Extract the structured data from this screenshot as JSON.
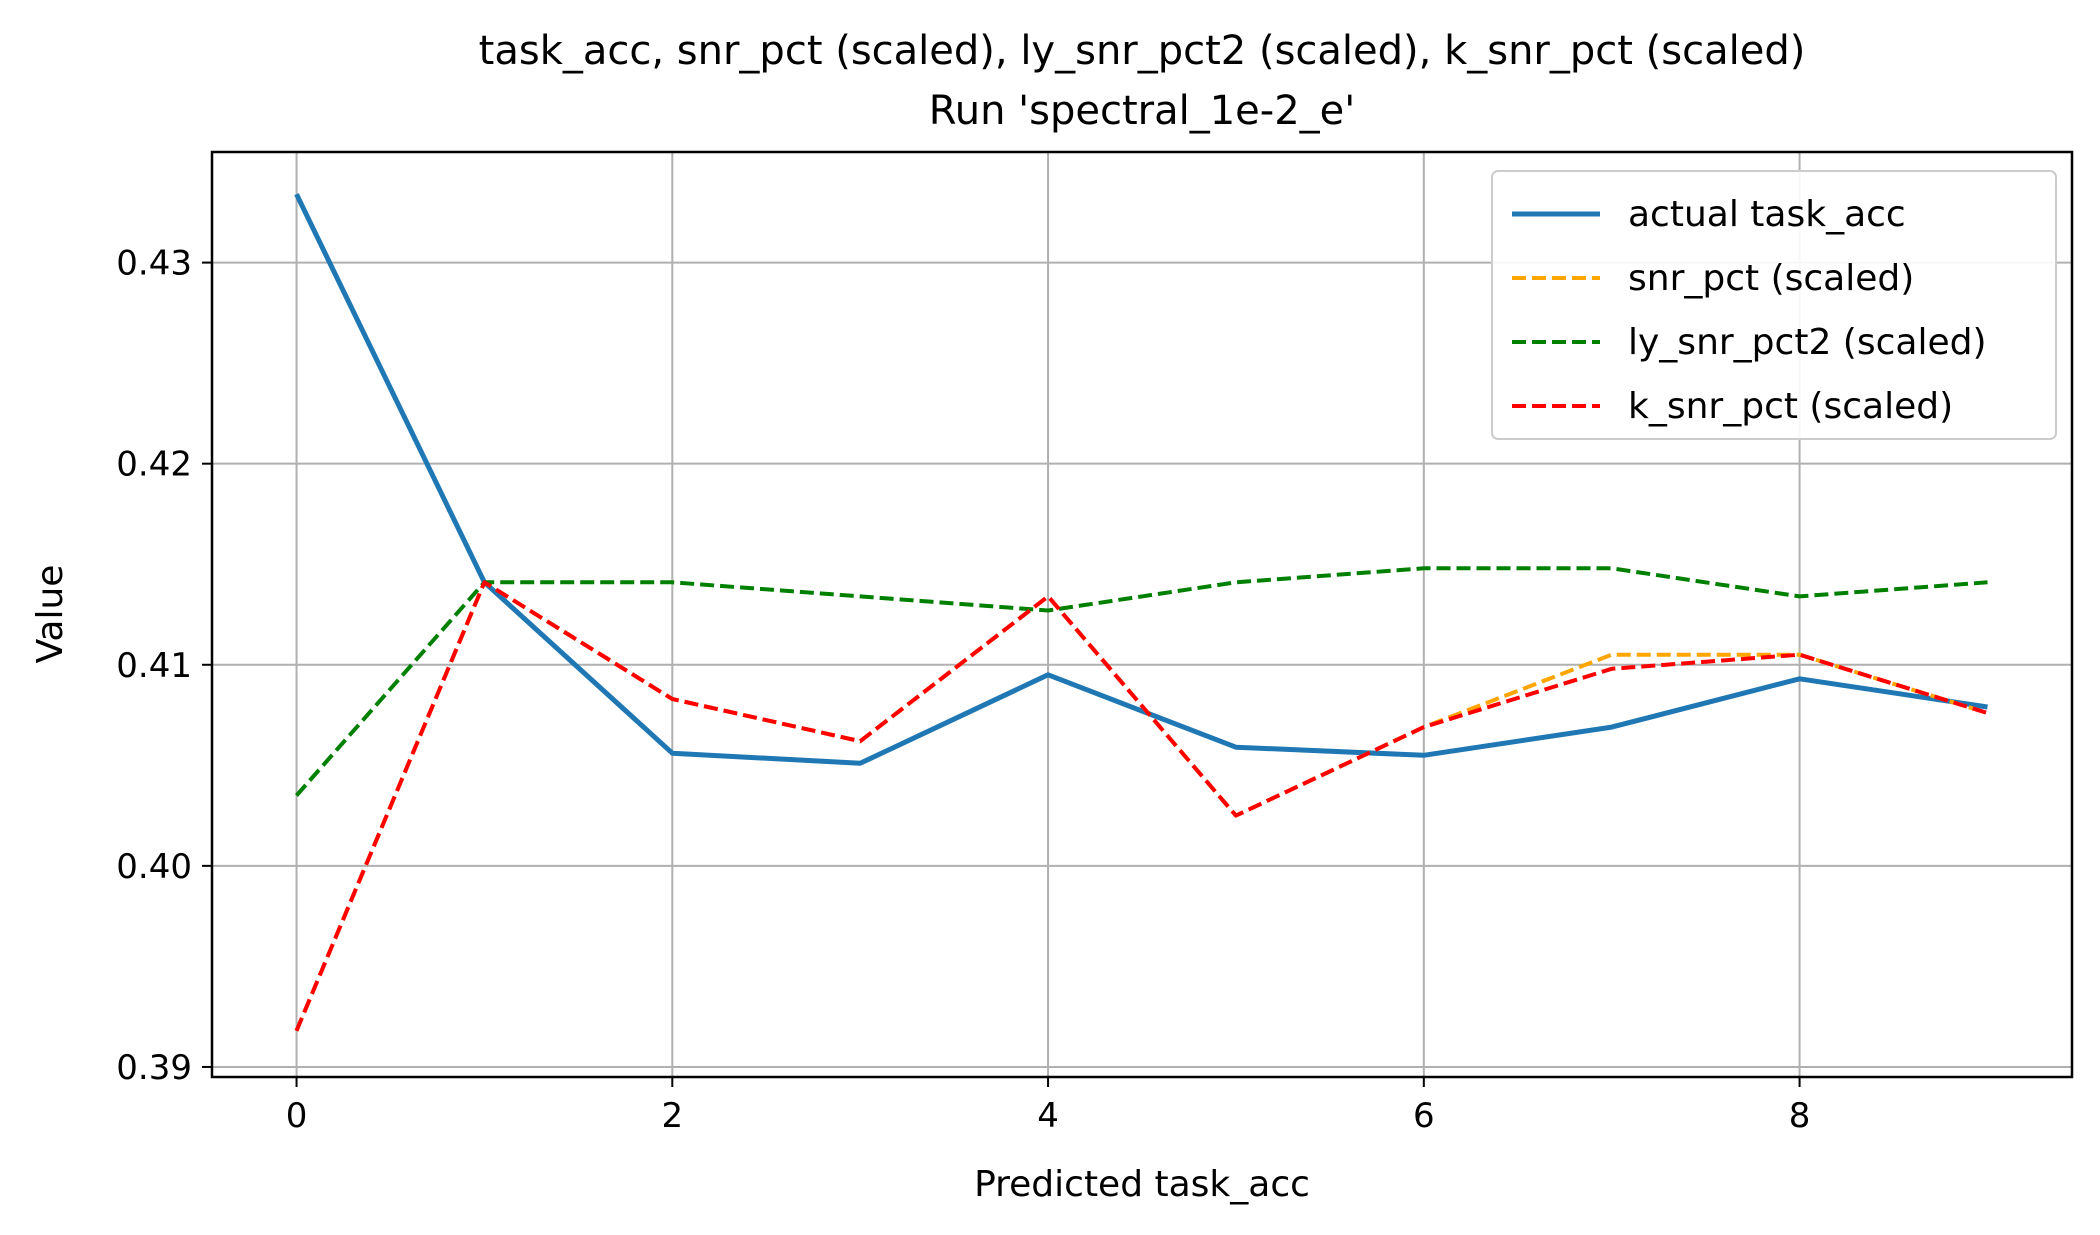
{
  "chart_data": {
    "type": "line",
    "title": "task_acc, snr_pct (scaled), ly_snr_pct2 (scaled), k_snr_pct (scaled)",
    "subtitle": "Run 'spectral_1e-2_e'",
    "xlabel": "Predicted task_acc",
    "ylabel": "Value",
    "xlim": [
      -0.45,
      9.45
    ],
    "ylim": [
      0.3895,
      0.4355
    ],
    "xticks": [
      0,
      2,
      4,
      6,
      8
    ],
    "yticks": [
      0.39,
      0.4,
      0.41,
      0.42,
      0.43
    ],
    "ytick_labels": [
      "0.39",
      "0.40",
      "0.41",
      "0.42",
      "0.43"
    ],
    "grid": true,
    "legend_position": "top-right",
    "x": [
      0,
      1,
      2,
      3,
      4,
      5,
      6,
      7,
      8,
      9
    ],
    "series": [
      {
        "name": "actual task_acc",
        "style": "solid",
        "color": "#1f77b4",
        "values": [
          0.4334,
          0.4141,
          0.4056,
          0.4051,
          0.4095,
          0.4059,
          0.4055,
          0.4069,
          0.4093,
          0.4079
        ]
      },
      {
        "name": "snr_pct (scaled)",
        "style": "dashed",
        "color": "#ffa500",
        "values": [
          0.3918,
          0.4141,
          0.4083,
          0.4062,
          0.4134,
          0.4025,
          0.4069,
          0.4105,
          0.4105,
          0.4076
        ]
      },
      {
        "name": "ly_snr_pct2 (scaled)",
        "style": "dashed",
        "color": "#008000",
        "values": [
          0.4035,
          0.4141,
          0.4141,
          0.4134,
          0.4127,
          0.4141,
          0.4148,
          0.4148,
          0.4134,
          0.4141
        ]
      },
      {
        "name": "k_snr_pct (scaled)",
        "style": "dashed",
        "color": "#ff0000",
        "values": [
          0.3918,
          0.4141,
          0.4083,
          0.4062,
          0.4134,
          0.4025,
          0.4069,
          0.4098,
          0.4105,
          0.4076
        ]
      }
    ]
  }
}
